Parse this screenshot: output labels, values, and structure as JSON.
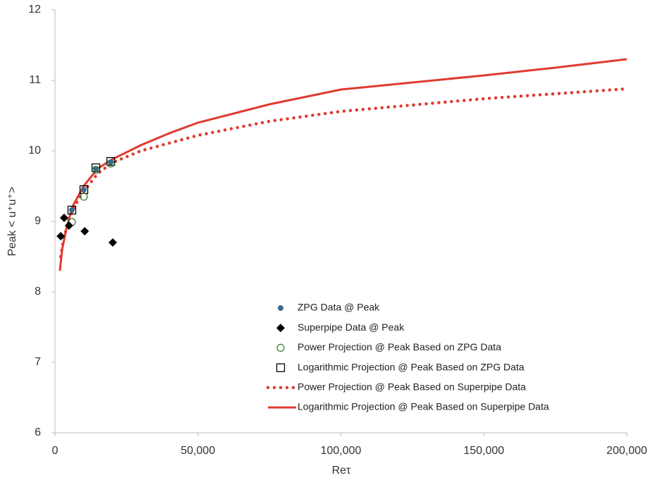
{
  "chart_data": {
    "type": "scatter",
    "xlabel": "Reτ",
    "ylabel": "Peak < u⁺u⁺>",
    "xlim": [
      0,
      200000
    ],
    "ylim": [
      6,
      12
    ],
    "xticks": [
      0,
      {
        "value": 50000,
        "label": "50,000"
      },
      {
        "value": 100000,
        "label": "100,000"
      },
      {
        "value": 150000,
        "label": "150,000"
      },
      {
        "value": 200000,
        "label": "200,000"
      }
    ],
    "yticks": [
      6,
      7,
      8,
      9,
      10,
      11,
      12
    ],
    "grid": false,
    "legend": "center",
    "series": [
      {
        "name": "ZPG Data @ Peak",
        "marker": "circle-filled",
        "color": "#3b6a8c",
        "x": [
          5900,
          10100,
          14300,
          19500
        ],
        "values": [
          9.16,
          9.45,
          9.74,
          9.84
        ]
      },
      {
        "name": "Superpipe Data @ Peak",
        "marker": "diamond",
        "color": "#000000",
        "x": [
          2000,
          3200,
          4900,
          10400,
          20200
        ],
        "values": [
          8.79,
          9.05,
          8.94,
          8.86,
          8.7
        ]
      },
      {
        "name": "Power Projection @ Peak Based on ZPG Data",
        "marker": "circle-open",
        "color": "#2e7d32",
        "x": [
          5900,
          10100,
          14300,
          19500
        ],
        "values": [
          8.99,
          9.35,
          9.73,
          9.82
        ]
      },
      {
        "name": "Logarithmic Projection @ Peak Based on ZPG Data",
        "marker": "square-open",
        "color": "#000000",
        "x": [
          5900,
          10100,
          14300,
          19500
        ],
        "values": [
          9.16,
          9.45,
          9.76,
          9.85
        ]
      },
      {
        "name": "Power Projection @ Peak Based on Superpipe Data",
        "marker": "dotted-line",
        "color": "#e03a2f",
        "x": [
          2000,
          3000,
          5000,
          8000,
          10000,
          15000,
          20000,
          30000,
          50000,
          75000,
          100000,
          150000,
          200000
        ],
        "values": [
          8.5,
          8.75,
          9.05,
          9.3,
          9.42,
          9.68,
          9.83,
          10.0,
          10.22,
          10.42,
          10.56,
          10.74,
          10.88
        ]
      },
      {
        "name": "Logarithmic Projection @ Peak Based on Superpipe Data",
        "marker": "line",
        "color": "#e03a2f",
        "x": [
          1700,
          2500,
          4000,
          6000,
          10000,
          15000,
          20000,
          30000,
          40000,
          50000,
          75000,
          100000,
          125000,
          150000,
          175000,
          200000
        ],
        "values": [
          8.3,
          8.6,
          8.9,
          9.2,
          9.5,
          9.75,
          9.88,
          10.08,
          10.25,
          10.4,
          10.66,
          10.87,
          10.97,
          11.07,
          11.18,
          11.3
        ]
      }
    ]
  }
}
